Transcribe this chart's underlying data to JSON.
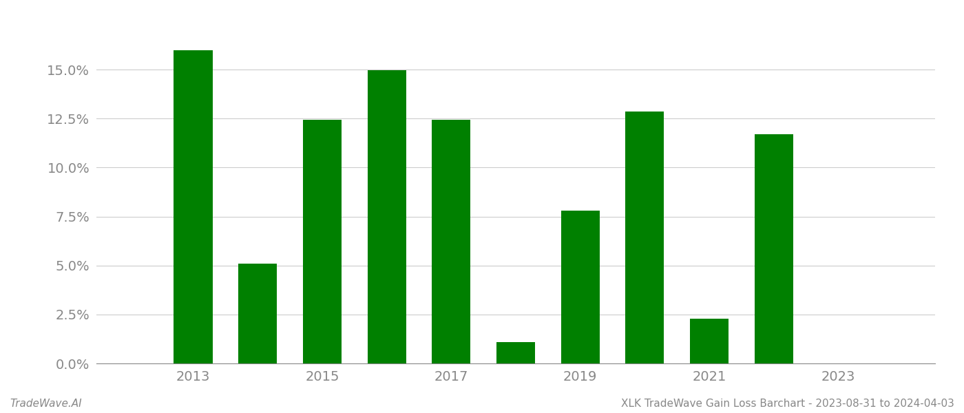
{
  "years": [
    2013,
    2014,
    2015,
    2016,
    2017,
    2018,
    2019,
    2020,
    2021,
    2022,
    2023
  ],
  "values": [
    0.16,
    0.051,
    0.1245,
    0.1498,
    0.1245,
    0.011,
    0.078,
    0.1285,
    0.023,
    0.117,
    0.0
  ],
  "bar_color": "#008000",
  "background_color": "#ffffff",
  "grid_color": "#cccccc",
  "axis_label_color": "#888888",
  "ylim": [
    0,
    0.175
  ],
  "yticks": [
    0.0,
    0.025,
    0.05,
    0.075,
    0.1,
    0.125,
    0.15
  ],
  "xtick_labels": [
    "2013",
    "2015",
    "2017",
    "2019",
    "2021",
    "2023"
  ],
  "xtick_positions": [
    2013,
    2015,
    2017,
    2019,
    2021,
    2023
  ],
  "xlim": [
    2011.5,
    2024.5
  ],
  "footer_left": "TradeWave.AI",
  "footer_right": "XLK TradeWave Gain Loss Barchart - 2023-08-31 to 2024-04-03",
  "bar_width": 0.6,
  "tick_fontsize": 14,
  "footer_fontsize": 11
}
